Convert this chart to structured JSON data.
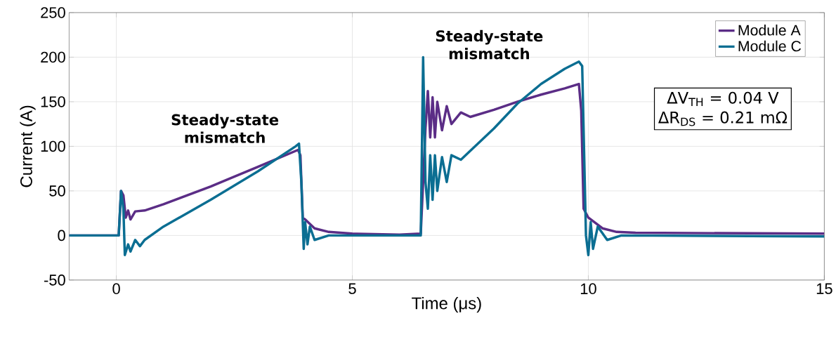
{
  "chart_data": {
    "type": "line",
    "xlabel": "Time (μs)",
    "ylabel": "Current (A)",
    "xlim": [
      -1,
      15
    ],
    "xticks": [
      0,
      5,
      10,
      15
    ],
    "ylim": [
      -50,
      250
    ],
    "yticks": [
      -50,
      0,
      50,
      100,
      150,
      200,
      250
    ],
    "grid": true,
    "legend": "top right",
    "marker": "none",
    "line_style": "solid",
    "annotations": [
      "Steady-state mismatch",
      "Steady-state mismatch",
      "ΔV$_{TH}$ = 0.04 V",
      "ΔR$_{DS}$ = 0.21 mΩ"
    ],
    "series": [
      {
        "name": "Module A",
        "color": "#5b2d86",
        "x": [
          -1,
          0,
          0.05,
          0.1,
          0.15,
          0.2,
          0.25,
          0.3,
          0.4,
          0.6,
          1,
          2,
          3,
          3.85,
          3.9,
          3.95,
          4.0,
          4.2,
          4.5,
          5,
          6,
          6.45,
          6.5,
          6.55,
          6.6,
          6.65,
          6.7,
          6.75,
          6.8,
          6.9,
          7.0,
          7.1,
          7.3,
          7.5,
          8,
          8.5,
          9,
          9.5,
          9.8,
          9.85,
          9.9,
          10,
          10.3,
          10.6,
          11,
          15
        ],
        "values": [
          0,
          0,
          0,
          50,
          45,
          20,
          28,
          18,
          27,
          28,
          35,
          55,
          77,
          96,
          90,
          20,
          18,
          8,
          4,
          2,
          1,
          2,
          60,
          120,
          162,
          110,
          155,
          110,
          150,
          118,
          145,
          125,
          138,
          133,
          141,
          150,
          158,
          165,
          170,
          140,
          30,
          20,
          8,
          4,
          3,
          2
        ]
      },
      {
        "name": "Module C",
        "color": "#0b6e92",
        "x": [
          -1,
          0,
          0.05,
          0.1,
          0.15,
          0.18,
          0.25,
          0.3,
          0.4,
          0.5,
          0.6,
          1,
          2,
          3,
          3.8,
          3.87,
          3.92,
          3.97,
          4.0,
          4.05,
          4.1,
          4.2,
          4.5,
          5,
          6.45,
          6.5,
          6.55,
          6.6,
          6.65,
          6.7,
          6.75,
          6.8,
          6.9,
          7.0,
          7.1,
          7.3,
          7.5,
          8,
          8.5,
          9,
          9.5,
          9.8,
          9.87,
          9.95,
          10.0,
          10.05,
          10.1,
          10.2,
          10.4,
          10.7,
          15
        ],
        "values": [
          0,
          0,
          0,
          50,
          30,
          -22,
          -10,
          -18,
          -5,
          -12,
          -5,
          10,
          40,
          72,
          100,
          103,
          60,
          -15,
          15,
          -10,
          10,
          -5,
          0,
          0,
          0,
          200,
          60,
          30,
          90,
          40,
          90,
          50,
          88,
          60,
          90,
          85,
          95,
          120,
          148,
          170,
          187,
          195,
          190,
          0,
          -22,
          15,
          -15,
          10,
          -5,
          0,
          -1
        ]
      }
    ]
  }
}
